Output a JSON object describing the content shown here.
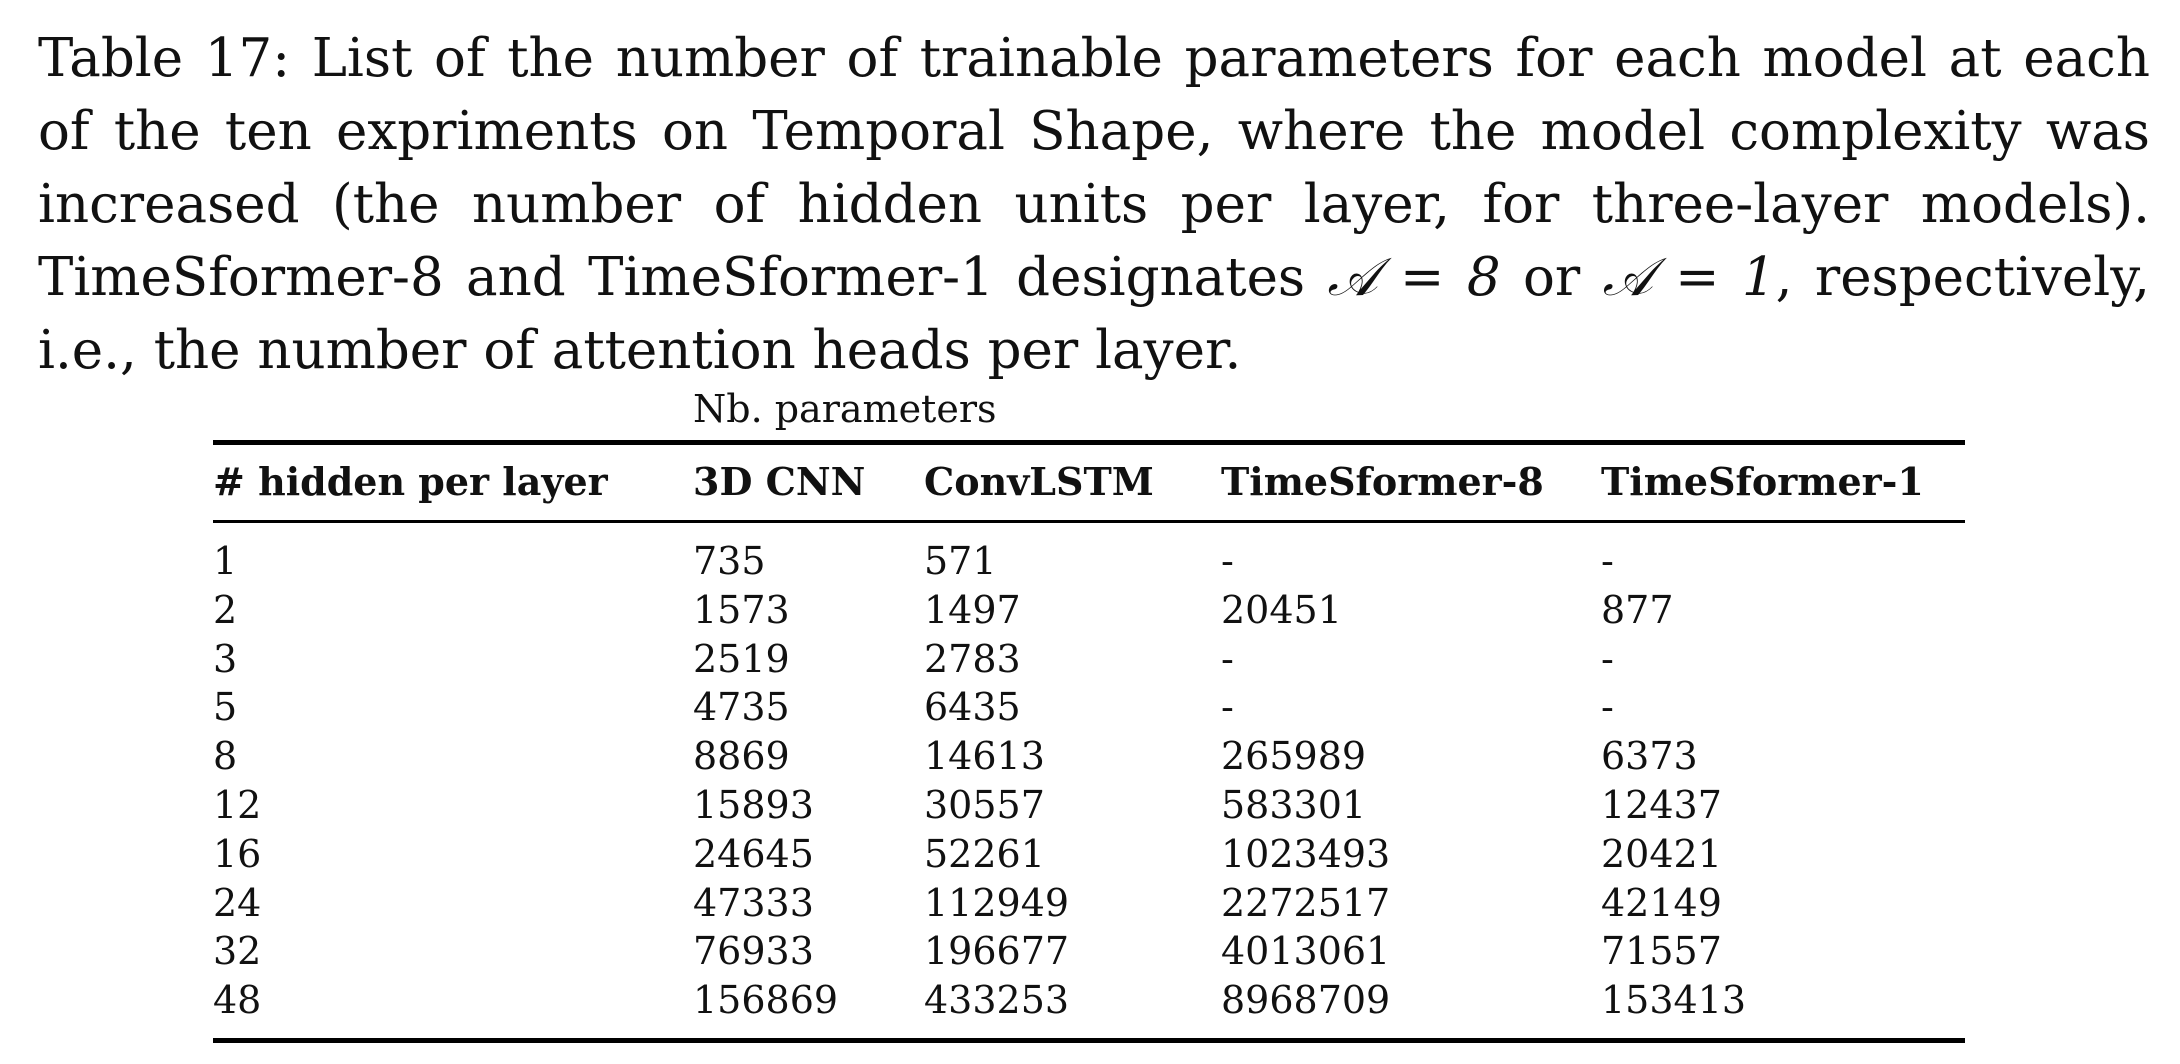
{
  "caption": {
    "text_before_math1": "Table 17: List of the number of trainable parameters for each model at each of the ten expriments on Temporal Shape, where the model complexity was increased (the number of hidden units per layer, for three-layer models). TimeSformer-8 and TimeSformer-1 designates ",
    "math1": "𝒜 = 8",
    "text_between": " or ",
    "math2": "𝒜 = 1",
    "text_after": ", respectively, i.e., the number of attention heads per layer."
  },
  "table": {
    "group_label": "Nb. parameters",
    "headers": [
      "# hidden per layer",
      "3D CNN",
      "ConvLSTM",
      "TimeSformer-8",
      "TimeSformer-1"
    ],
    "rows": [
      [
        "1",
        "735",
        "571",
        "-",
        "-"
      ],
      [
        "2",
        "1573",
        "1497",
        "20451",
        "877"
      ],
      [
        "3",
        "2519",
        "2783",
        "-",
        "-"
      ],
      [
        "5",
        "4735",
        "6435",
        "-",
        "-"
      ],
      [
        "8",
        "8869",
        "14613",
        "265989",
        "6373"
      ],
      [
        "12",
        "15893",
        "30557",
        "583301",
        "12437"
      ],
      [
        "16",
        "24645",
        "52261",
        "1023493",
        "20421"
      ],
      [
        "24",
        "47333",
        "112949",
        "2272517",
        "42149"
      ],
      [
        "32",
        "76933",
        "196677",
        "4013061",
        "71557"
      ],
      [
        "48",
        "156869",
        "433253",
        "8968709",
        "153413"
      ]
    ]
  }
}
